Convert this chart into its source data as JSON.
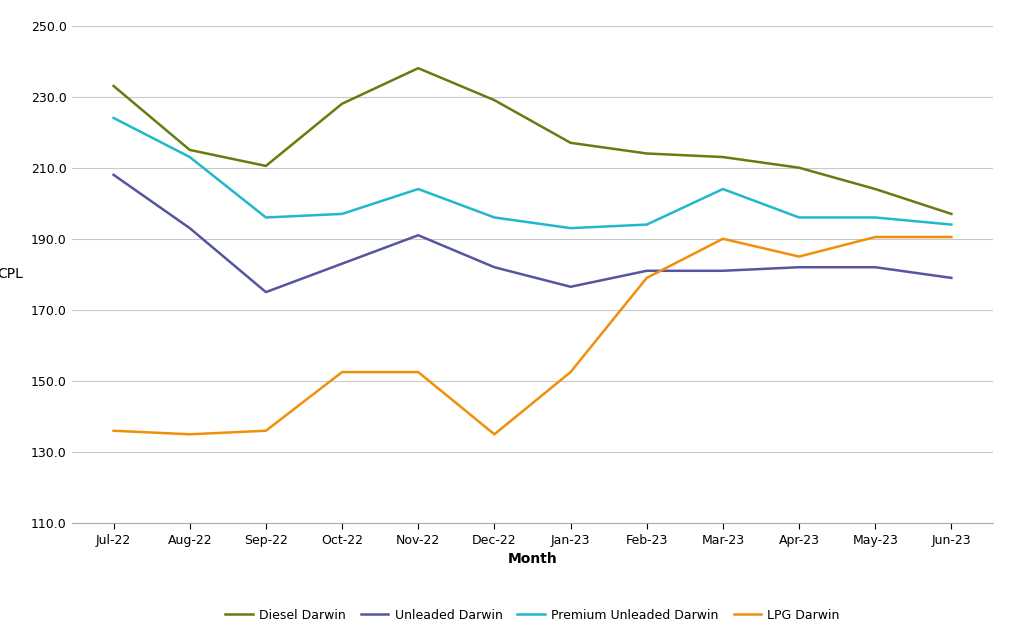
{
  "months": [
    "Jul-22",
    "Aug-22",
    "Sep-22",
    "Oct-22",
    "Nov-22",
    "Dec-22",
    "Jan-23",
    "Feb-23",
    "Mar-23",
    "Apr-23",
    "May-23",
    "Jun-23"
  ],
  "diesel_darwin": [
    233.0,
    215.0,
    210.5,
    228.0,
    238.0,
    229.0,
    217.0,
    214.0,
    213.0,
    210.0,
    204.0,
    197.0
  ],
  "unleaded_darwin": [
    208.0,
    193.0,
    175.0,
    183.0,
    191.0,
    182.0,
    176.5,
    181.0,
    181.0,
    182.0,
    182.0,
    179.0
  ],
  "premium_unleaded_darwin": [
    224.0,
    213.0,
    196.0,
    197.0,
    204.0,
    196.0,
    193.0,
    194.0,
    204.0,
    196.0,
    196.0,
    194.0
  ],
  "lpg_darwin": [
    136.0,
    135.0,
    136.0,
    152.5,
    152.5,
    135.0,
    152.5,
    179.0,
    190.0,
    185.0,
    190.5,
    190.5
  ],
  "colors": {
    "diesel": "#6b7a10",
    "unleaded": "#5555a0",
    "premium": "#20b8cc",
    "lpg": "#f0900a"
  },
  "xlabel": "Month",
  "ylabel": "CPL",
  "ylim": [
    110.0,
    250.0
  ],
  "yticks": [
    110.0,
    130.0,
    150.0,
    170.0,
    190.0,
    210.0,
    230.0,
    250.0
  ],
  "legend_labels": [
    "Diesel Darwin",
    "Unleaded Darwin",
    "Premium Unleaded Darwin",
    "LPG Darwin"
  ],
  "background_color": "#ffffff",
  "grid_color": "#c8c8c8",
  "linewidth": 1.8
}
